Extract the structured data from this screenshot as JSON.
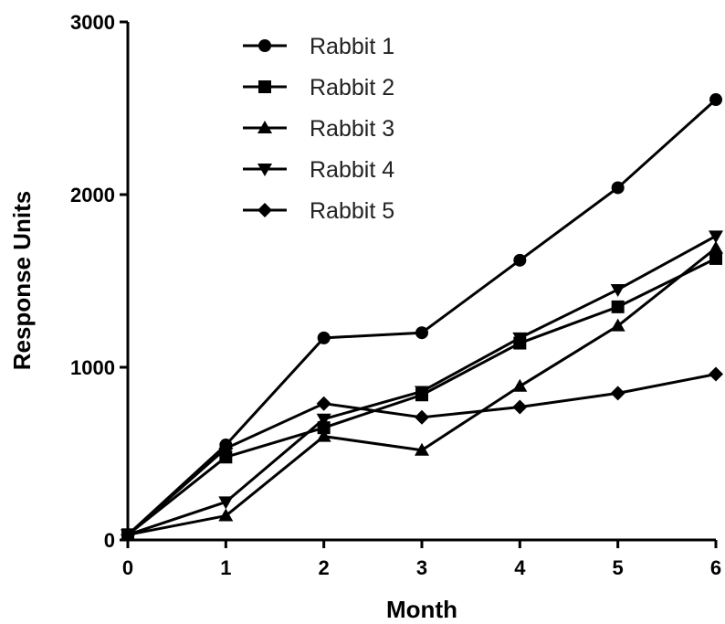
{
  "chart_data": {
    "type": "line",
    "title": "",
    "xlabel": "Month",
    "ylabel": "Response Units",
    "x": [
      0,
      1,
      2,
      3,
      4,
      5,
      6
    ],
    "xlim": [
      0,
      6
    ],
    "ylim": [
      0,
      3000
    ],
    "x_ticks": [
      "0",
      "1",
      "2",
      "3",
      "4",
      "5",
      "6"
    ],
    "y_ticks": [
      "0",
      "1000",
      "2000",
      "3000"
    ],
    "grid": false,
    "legend_position": "top-center",
    "line_color": "#000000",
    "series": [
      {
        "name": "Rabbit 1",
        "marker": "circle",
        "values": [
          30,
          550,
          1170,
          1200,
          1620,
          2040,
          2550
        ]
      },
      {
        "name": "Rabbit 2",
        "marker": "square",
        "values": [
          30,
          480,
          650,
          840,
          1140,
          1350,
          1630
        ]
      },
      {
        "name": "Rabbit 3",
        "marker": "triangle-up",
        "values": [
          30,
          140,
          600,
          520,
          890,
          1240,
          1690
        ]
      },
      {
        "name": "Rabbit 4",
        "marker": "triangle-down",
        "values": [
          30,
          220,
          700,
          860,
          1170,
          1450,
          1760
        ]
      },
      {
        "name": "Rabbit 5",
        "marker": "diamond",
        "values": [
          30,
          530,
          790,
          710,
          770,
          850,
          960
        ]
      }
    ]
  }
}
